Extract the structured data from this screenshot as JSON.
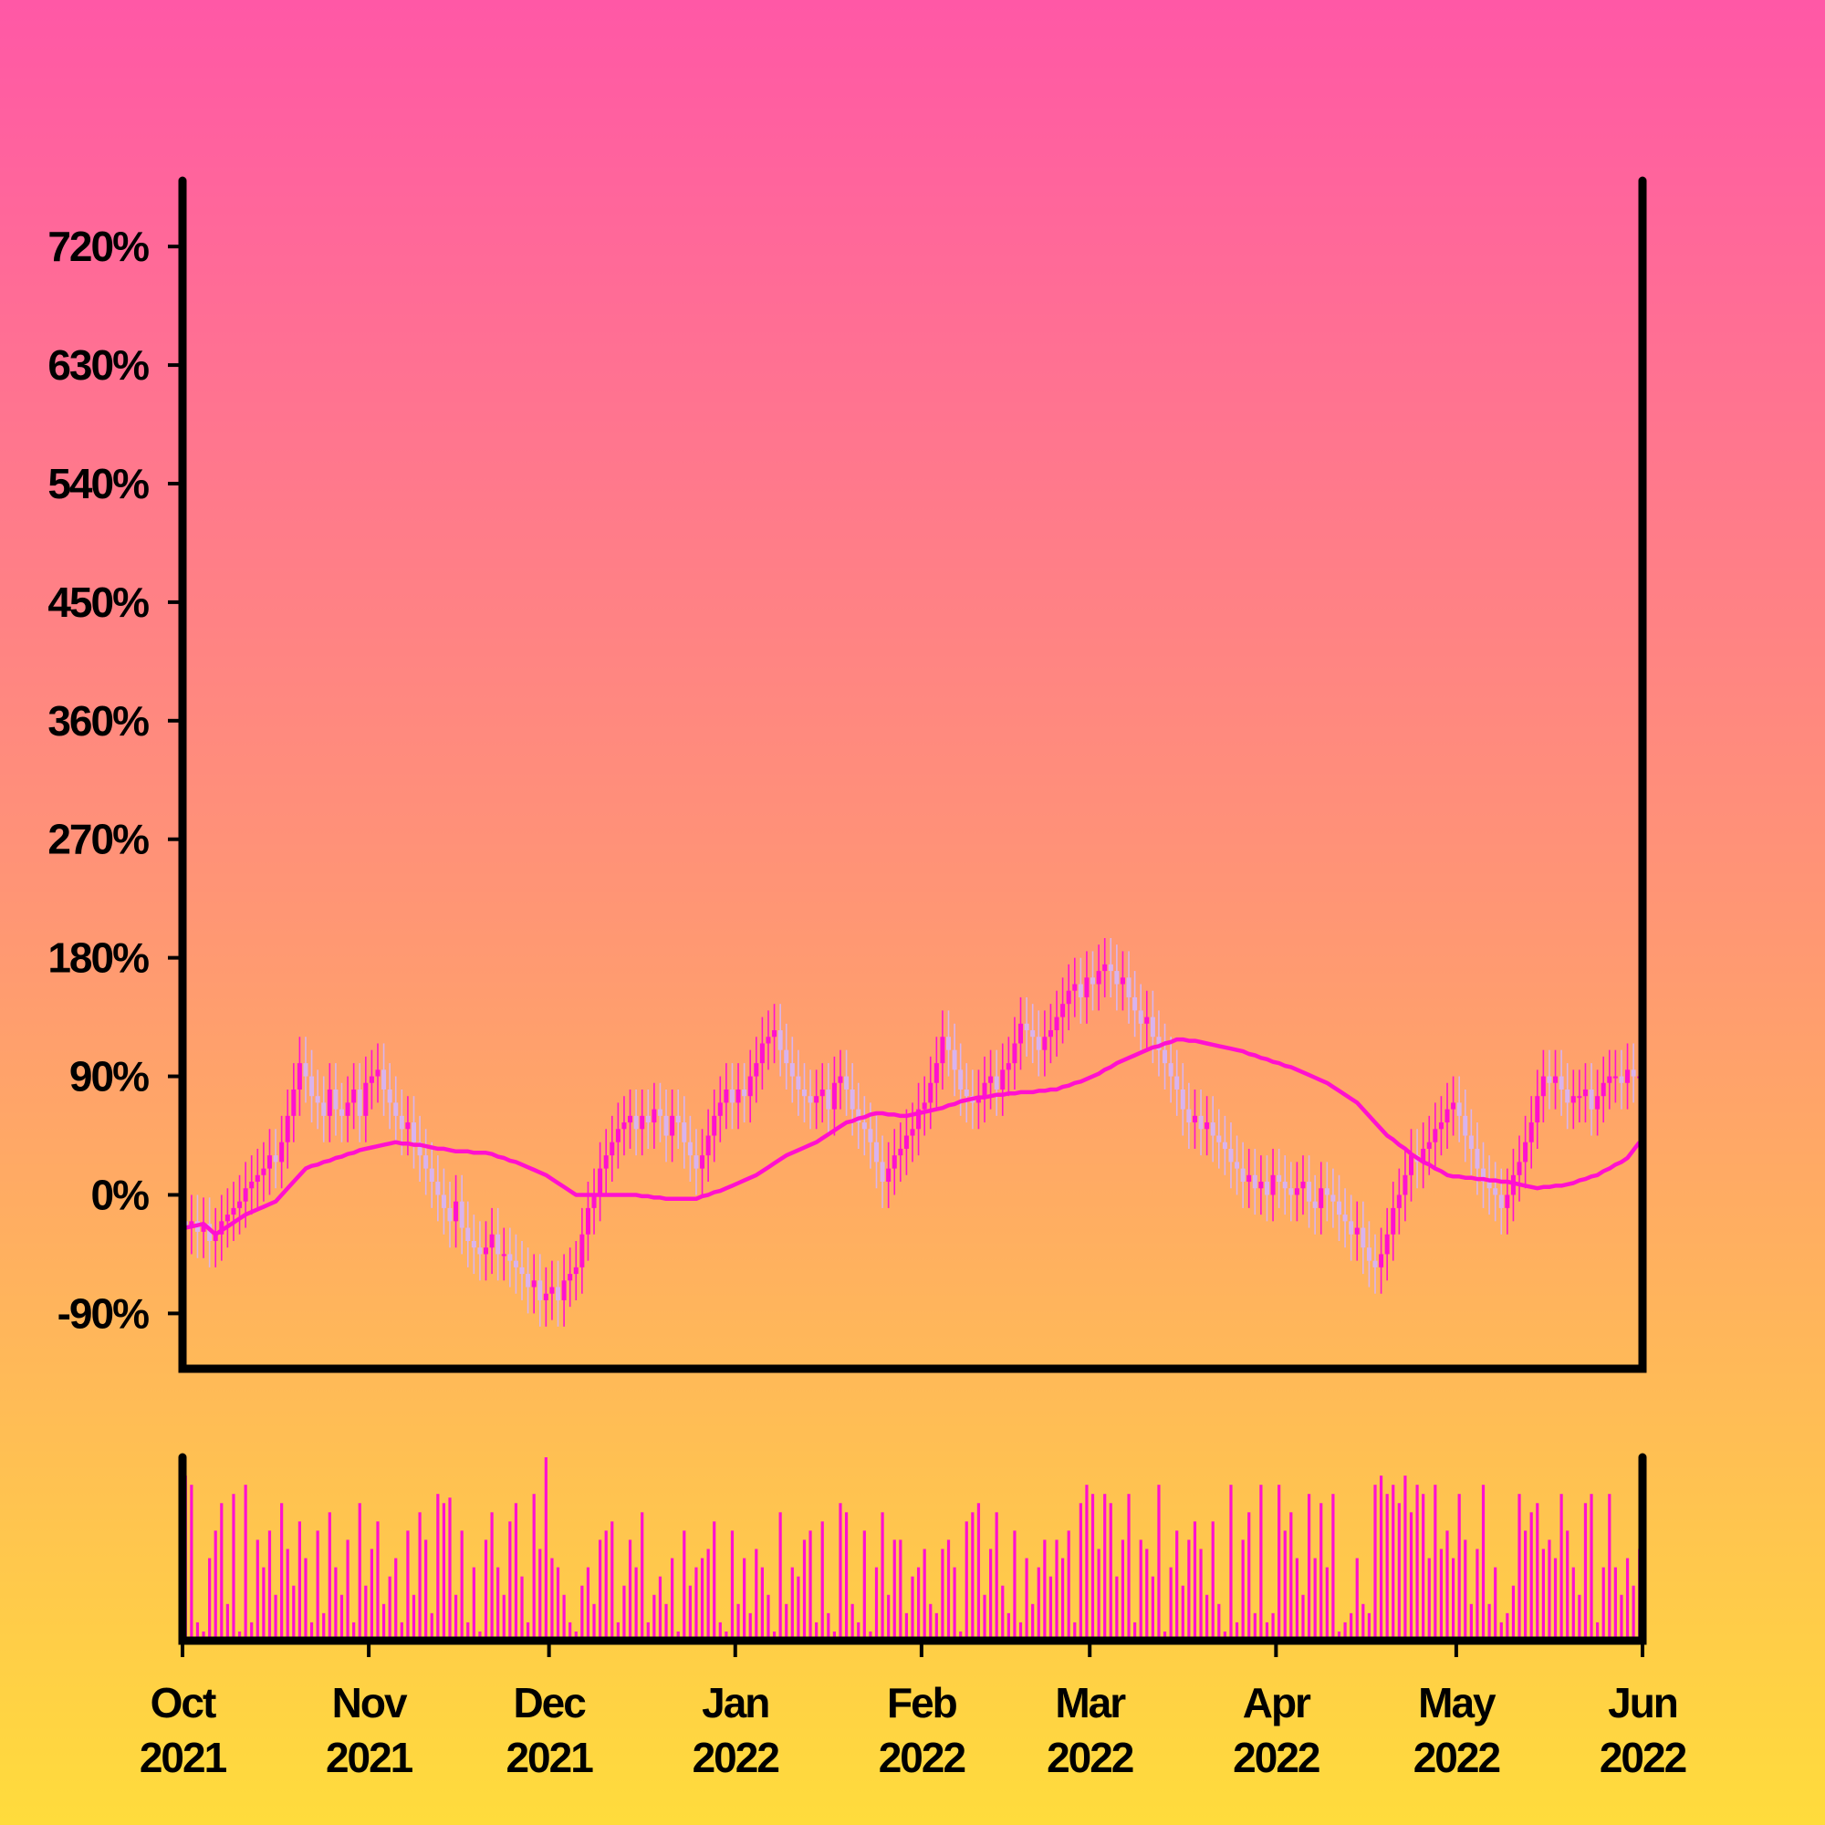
{
  "chart_data": {
    "type": "candlestick",
    "xlim": [
      0,
      243
    ],
    "xticks": [
      {
        "value": 0,
        "label": "Oct 2021"
      },
      {
        "value": 31,
        "label": "Nov 2021"
      },
      {
        "value": 61,
        "label": "Dec 2021"
      },
      {
        "value": 92,
        "label": "Jan 2022"
      },
      {
        "value": 123,
        "label": "Feb 2022"
      },
      {
        "value": 151,
        "label": "Mar 2022"
      },
      {
        "value": 182,
        "label": "Apr 2022"
      },
      {
        "value": 212,
        "label": "May 2022"
      },
      {
        "value": 243,
        "label": "Jun 2022"
      }
    ],
    "ylim": [
      -132,
      770
    ],
    "yticks": [
      {
        "value": -90,
        "label": "-90%"
      },
      {
        "value": 0,
        "label": "0%"
      },
      {
        "value": 90,
        "label": "90%"
      },
      {
        "value": 180,
        "label": "180%"
      },
      {
        "value": 270,
        "label": "270%"
      },
      {
        "value": 360,
        "label": "360%"
      },
      {
        "value": 450,
        "label": "450%"
      },
      {
        "value": 540,
        "label": "540%"
      },
      {
        "value": 630,
        "label": "630%"
      },
      {
        "value": 720,
        "label": "720%"
      }
    ],
    "up_color": "#ff10d0",
    "down_color": "#d9b3ee",
    "open": [
      -20,
      -25,
      -20,
      -28,
      -22,
      -35,
      -30,
      -20,
      -15,
      -10,
      -5,
      5,
      10,
      15,
      20,
      30,
      25,
      40,
      60,
      80,
      100,
      90,
      75,
      70,
      60,
      80,
      65,
      60,
      70,
      80,
      60,
      85,
      90,
      95,
      80,
      70,
      60,
      50,
      55,
      40,
      30,
      20,
      10,
      0,
      -10,
      -20,
      -5,
      -25,
      -35,
      -40,
      -45,
      -40,
      -30,
      -45,
      -45,
      -50,
      -55,
      -60,
      -70,
      -65,
      -80,
      -75,
      -70,
      -80,
      -65,
      -60,
      -55,
      -30,
      -10,
      0,
      20,
      30,
      40,
      50,
      55,
      60,
      50,
      60,
      55,
      65,
      60,
      45,
      60,
      55,
      40,
      30,
      20,
      30,
      45,
      60,
      70,
      80,
      70,
      80,
      75,
      90,
      100,
      115,
      120,
      125,
      110,
      100,
      90,
      80,
      75,
      70,
      75,
      80,
      65,
      85,
      90,
      80,
      65,
      55,
      50,
      40,
      25,
      10,
      20,
      30,
      35,
      45,
      50,
      65,
      70,
      85,
      100,
      120,
      110,
      95,
      80,
      75,
      70,
      75,
      85,
      90,
      80,
      95,
      100,
      115,
      130,
      125,
      120,
      110,
      120,
      125,
      135,
      145,
      155,
      160,
      150,
      165,
      160,
      170,
      175,
      170,
      160,
      165,
      150,
      140,
      130,
      135,
      120,
      110,
      100,
      90,
      80,
      65,
      55,
      60,
      50,
      55,
      45,
      40,
      35,
      25,
      20,
      10,
      15,
      5,
      10,
      0,
      15,
      10,
      5,
      0,
      5,
      10,
      -5,
      -10,
      5,
      0,
      -5,
      -15,
      -20,
      -30,
      -25,
      -40,
      -50,
      -55,
      -45,
      -30,
      -10,
      0,
      15,
      30,
      25,
      35,
      40,
      50,
      55,
      65,
      70,
      60,
      45,
      35,
      20,
      10,
      5,
      0,
      -10,
      0,
      15,
      25,
      40,
      55,
      75,
      90,
      85,
      90,
      80,
      70,
      75,
      75,
      80,
      65,
      75,
      85,
      90,
      90,
      85,
      95,
      90
    ],
    "high": [
      0,
      0,
      0,
      -2,
      -2,
      -10,
      0,
      5,
      10,
      15,
      25,
      30,
      35,
      40,
      50,
      50,
      60,
      80,
      100,
      120,
      120,
      110,
      95,
      90,
      100,
      100,
      85,
      90,
      100,
      100,
      105,
      110,
      115,
      115,
      100,
      90,
      80,
      75,
      75,
      60,
      50,
      40,
      30,
      20,
      10,
      15,
      15,
      -5,
      -15,
      -20,
      -20,
      -10,
      -10,
      -25,
      -25,
      -30,
      -35,
      -40,
      -45,
      -45,
      -55,
      -50,
      -50,
      -45,
      -40,
      -35,
      -10,
      10,
      20,
      40,
      50,
      60,
      70,
      75,
      80,
      80,
      80,
      80,
      85,
      85,
      80,
      80,
      80,
      75,
      60,
      50,
      50,
      65,
      80,
      90,
      100,
      100,
      100,
      100,
      110,
      120,
      135,
      140,
      145,
      145,
      130,
      120,
      110,
      100,
      95,
      95,
      100,
      100,
      105,
      110,
      110,
      100,
      85,
      75,
      70,
      60,
      45,
      40,
      50,
      55,
      65,
      70,
      85,
      90,
      105,
      120,
      140,
      140,
      130,
      115,
      100,
      95,
      95,
      105,
      110,
      110,
      115,
      120,
      135,
      150,
      150,
      145,
      140,
      140,
      145,
      155,
      165,
      175,
      180,
      180,
      185,
      185,
      190,
      195,
      195,
      190,
      185,
      185,
      170,
      160,
      155,
      155,
      140,
      130,
      120,
      110,
      100,
      85,
      80,
      80,
      75,
      75,
      65,
      60,
      55,
      45,
      40,
      35,
      35,
      30,
      30,
      35,
      35,
      30,
      25,
      25,
      30,
      30,
      15,
      25,
      25,
      20,
      15,
      5,
      0,
      -5,
      -5,
      -20,
      -30,
      -25,
      -10,
      10,
      20,
      35,
      50,
      50,
      55,
      60,
      70,
      75,
      85,
      90,
      90,
      80,
      65,
      55,
      40,
      30,
      25,
      20,
      20,
      35,
      45,
      60,
      75,
      95,
      110,
      110,
      110,
      110,
      100,
      95,
      95,
      100,
      100,
      95,
      105,
      110,
      110,
      110,
      115,
      115,
      110
    ],
    "low": [
      -45,
      -45,
      -48,
      -48,
      -55,
      -55,
      -50,
      -40,
      -35,
      -30,
      -25,
      -15,
      -10,
      -5,
      0,
      5,
      5,
      20,
      40,
      60,
      70,
      55,
      50,
      40,
      40,
      45,
      40,
      40,
      50,
      40,
      40,
      65,
      70,
      60,
      50,
      40,
      30,
      30,
      20,
      10,
      0,
      -10,
      -20,
      -30,
      -40,
      -40,
      -45,
      -55,
      -60,
      -65,
      -65,
      -60,
      -65,
      -65,
      -70,
      -75,
      -80,
      -90,
      -90,
      -100,
      -100,
      -95,
      -100,
      -100,
      -85,
      -80,
      -75,
      -50,
      -30,
      -20,
      0,
      10,
      20,
      30,
      35,
      30,
      30,
      35,
      35,
      40,
      25,
      25,
      35,
      20,
      10,
      0,
      0,
      10,
      25,
      40,
      50,
      50,
      50,
      55,
      55,
      70,
      80,
      95,
      100,
      90,
      80,
      70,
      60,
      55,
      50,
      50,
      55,
      45,
      45,
      65,
      60,
      45,
      35,
      30,
      20,
      5,
      -10,
      -10,
      0,
      10,
      15,
      25,
      30,
      45,
      50,
      65,
      80,
      90,
      75,
      60,
      55,
      50,
      50,
      55,
      65,
      60,
      60,
      75,
      80,
      95,
      105,
      100,
      90,
      90,
      100,
      105,
      115,
      125,
      135,
      130,
      130,
      140,
      140,
      150,
      150,
      140,
      140,
      130,
      120,
      110,
      110,
      100,
      90,
      80,
      70,
      60,
      45,
      35,
      35,
      30,
      30,
      25,
      20,
      15,
      5,
      0,
      -10,
      -10,
      -15,
      -15,
      -20,
      -20,
      -10,
      -15,
      -20,
      -20,
      -15,
      -25,
      -30,
      -30,
      -20,
      -25,
      -35,
      -40,
      -50,
      -50,
      -60,
      -70,
      -75,
      -75,
      -65,
      -50,
      -30,
      -20,
      -5,
      5,
      5,
      15,
      20,
      30,
      35,
      45,
      40,
      25,
      15,
      0,
      -10,
      -15,
      -20,
      -30,
      -30,
      -20,
      -5,
      5,
      20,
      35,
      55,
      65,
      65,
      60,
      50,
      50,
      55,
      55,
      45,
      45,
      55,
      65,
      70,
      65,
      65,
      70,
      70
    ],
    "close": [
      -25,
      -20,
      -28,
      -22,
      -35,
      -30,
      -20,
      -15,
      -10,
      -5,
      5,
      10,
      15,
      20,
      30,
      25,
      40,
      60,
      80,
      100,
      90,
      75,
      70,
      60,
      80,
      65,
      60,
      70,
      80,
      60,
      85,
      90,
      95,
      80,
      70,
      60,
      50,
      55,
      40,
      30,
      20,
      10,
      0,
      -10,
      -20,
      -5,
      -25,
      -35,
      -40,
      -45,
      -40,
      -30,
      -45,
      -45,
      -50,
      -55,
      -60,
      -70,
      -65,
      -80,
      -75,
      -70,
      -80,
      -65,
      -60,
      -55,
      -30,
      -10,
      0,
      20,
      30,
      40,
      50,
      55,
      60,
      50,
      60,
      55,
      65,
      60,
      45,
      60,
      55,
      40,
      30,
      20,
      30,
      45,
      60,
      70,
      80,
      70,
      80,
      75,
      90,
      100,
      115,
      120,
      125,
      110,
      100,
      90,
      80,
      75,
      70,
      75,
      80,
      65,
      85,
      90,
      80,
      65,
      55,
      50,
      40,
      25,
      10,
      20,
      30,
      35,
      45,
      50,
      65,
      70,
      85,
      100,
      120,
      110,
      95,
      80,
      75,
      70,
      75,
      85,
      90,
      80,
      95,
      100,
      115,
      130,
      125,
      120,
      110,
      120,
      125,
      135,
      145,
      155,
      160,
      150,
      165,
      160,
      170,
      175,
      170,
      160,
      165,
      150,
      140,
      130,
      135,
      120,
      110,
      100,
      90,
      80,
      65,
      55,
      60,
      50,
      55,
      45,
      40,
      35,
      25,
      20,
      10,
      15,
      5,
      10,
      0,
      15,
      10,
      5,
      0,
      5,
      10,
      -5,
      -10,
      5,
      0,
      -5,
      -15,
      -20,
      -30,
      -25,
      -40,
      -50,
      -55,
      -45,
      -30,
      -10,
      0,
      15,
      30,
      25,
      35,
      40,
      50,
      55,
      65,
      70,
      60,
      45,
      35,
      20,
      10,
      5,
      0,
      -10,
      0,
      15,
      25,
      40,
      55,
      75,
      90,
      85,
      90,
      80,
      70,
      75,
      75,
      80,
      65,
      75,
      85,
      90,
      90,
      85,
      95,
      90,
      90
    ],
    "moving_average": {
      "color": "#ff10d0",
      "values": [
        -25,
        -24,
        -23,
        -22,
        -26,
        -30,
        -27,
        -24,
        -21,
        -18,
        -15,
        -13,
        -11,
        -9,
        -7,
        -5,
        0,
        5,
        10,
        15,
        20,
        22,
        23,
        25,
        26,
        28,
        29,
        31,
        32,
        34,
        35,
        36,
        37,
        38,
        39,
        40,
        39,
        39,
        38,
        38,
        37,
        36,
        35,
        35,
        34,
        33,
        33,
        33,
        32,
        32,
        32,
        31,
        29,
        28,
        26,
        25,
        23,
        21,
        19,
        17,
        15,
        12,
        9,
        6,
        3,
        0,
        0,
        0,
        0,
        0,
        0,
        0,
        0,
        0,
        0,
        0,
        -1,
        -1,
        -2,
        -2,
        -3,
        -3,
        -3,
        -3,
        -3,
        -3,
        -1,
        0,
        2,
        3,
        5,
        7,
        9,
        11,
        13,
        15,
        18,
        21,
        24,
        27,
        30,
        32,
        34,
        36,
        38,
        40,
        43,
        46,
        49,
        52,
        55,
        56,
        58,
        59,
        61,
        62,
        62,
        61,
        61,
        60,
        60,
        61,
        62,
        63,
        64,
        65,
        66,
        68,
        69,
        71,
        72,
        73,
        74,
        74,
        75,
        76,
        76,
        77,
        77,
        78,
        78,
        78,
        79,
        79,
        80,
        80,
        82,
        83,
        85,
        86,
        88,
        90,
        92,
        95,
        97,
        100,
        102,
        104,
        106,
        108,
        110,
        112,
        113,
        115,
        116,
        118,
        118,
        117,
        117,
        116,
        115,
        114,
        113,
        112,
        111,
        110,
        109,
        107,
        106,
        104,
        103,
        101,
        100,
        98,
        97,
        95,
        93,
        91,
        89,
        87,
        85,
        82,
        79,
        76,
        73,
        70,
        65,
        60,
        55,
        50,
        45,
        42,
        38,
        35,
        31,
        28,
        25,
        23,
        20,
        18,
        15,
        14,
        14,
        13,
        13,
        12,
        12,
        11,
        11,
        10,
        10,
        9,
        8,
        7,
        6,
        5,
        6,
        6,
        7,
        7,
        8,
        9,
        11,
        12,
        14,
        15,
        18,
        20,
        23,
        25,
        28,
        34,
        40
      ]
    },
    "volume": {
      "color": "#ff10d0",
      "ylim": [
        0,
        100
      ],
      "values": [
        90,
        85,
        10,
        5,
        45,
        60,
        75,
        20,
        80,
        5,
        85,
        10,
        55,
        40,
        60,
        25,
        75,
        50,
        30,
        65,
        45,
        10,
        60,
        15,
        70,
        40,
        25,
        55,
        10,
        75,
        30,
        50,
        65,
        20,
        35,
        45,
        10,
        60,
        25,
        70,
        55,
        15,
        80,
        75,
        78,
        25,
        60,
        10,
        40,
        5,
        55,
        70,
        40,
        25,
        65,
        75,
        35,
        10,
        80,
        50,
        100,
        45,
        40,
        25,
        10,
        5,
        30,
        40,
        20,
        55,
        60,
        65,
        10,
        30,
        55,
        40,
        70,
        10,
        25,
        35,
        20,
        45,
        5,
        60,
        30,
        40,
        45,
        50,
        65,
        10,
        5,
        60,
        20,
        45,
        15,
        50,
        40,
        25,
        5,
        70,
        20,
        40,
        35,
        55,
        60,
        10,
        65,
        15,
        5,
        75,
        70,
        20,
        10,
        60,
        5,
        40,
        70,
        25,
        55,
        55,
        15,
        35,
        40,
        50,
        20,
        15,
        50,
        55,
        40,
        5,
        65,
        70,
        75,
        25,
        50,
        70,
        30,
        15,
        60,
        10,
        45,
        20,
        40,
        55,
        35,
        55,
        45,
        60,
        10,
        75,
        85,
        80,
        50,
        80,
        75,
        35,
        55,
        80,
        10,
        55,
        50,
        35,
        85,
        5,
        40,
        60,
        30,
        55,
        65,
        50,
        25,
        65,
        20,
        5,
        85,
        10,
        55,
        70,
        15,
        85,
        10,
        15,
        85,
        60,
        70,
        45,
        25,
        80,
        45,
        75,
        40,
        80,
        5,
        10,
        15,
        45,
        20,
        15,
        85,
        90,
        80,
        85,
        75,
        90,
        70,
        85,
        80,
        45,
        85,
        50,
        60,
        45,
        80,
        55,
        20,
        50,
        85,
        20,
        40,
        10,
        15,
        30,
        80,
        60,
        70,
        75,
        50,
        55,
        45,
        80,
        60,
        40,
        25,
        75,
        80,
        10,
        40,
        80,
        40,
        25,
        45,
        30,
        50
      ]
    }
  }
}
